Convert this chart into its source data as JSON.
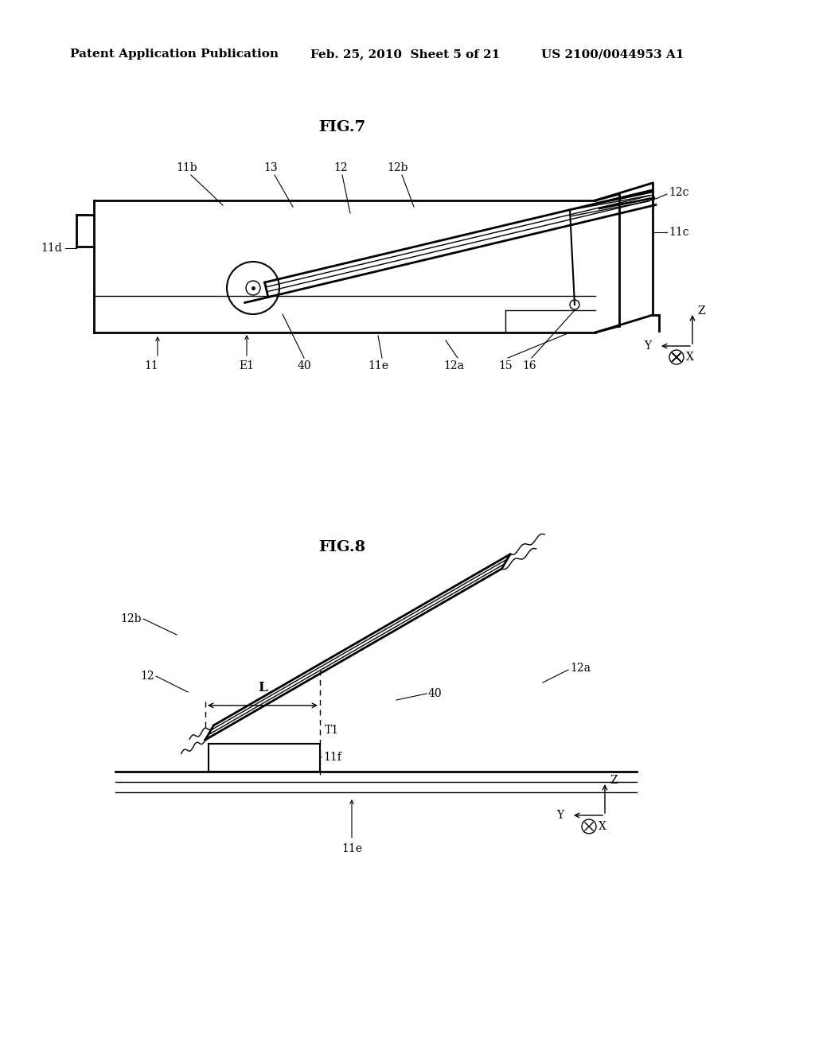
{
  "background_color": "#ffffff",
  "header_left": "Patent Application Publication",
  "header_center": "Feb. 25, 2010  Sheet 5 of 21",
  "header_right": "US 2100/0044953 A1",
  "fig7_title": "FIG.7",
  "fig8_title": "FIG.8",
  "line_color": "#000000",
  "lw_thick": 2.0,
  "lw_thin": 1.0,
  "lw_medium": 1.5,
  "font_size_header": 11,
  "font_size_title": 14,
  "font_size_label": 10
}
